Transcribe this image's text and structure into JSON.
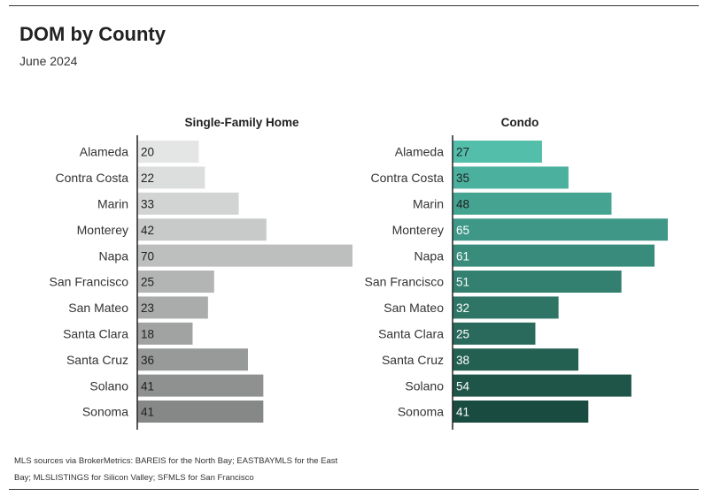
{
  "title": "DOM by County",
  "subtitle": "June 2024",
  "footer": {
    "line1": "MLS sources via BrokerMetrics: BAREIS for the North Bay; EASTBAYMLS for the East",
    "line2": "Bay; MLSLISTINGS for Silicon Valley; SFMLS for San Francisco"
  },
  "chart_data": [
    {
      "type": "bar",
      "orientation": "horizontal",
      "title": "Single-Family Home",
      "categories": [
        "Alameda",
        "Contra Costa",
        "Marin",
        "Monterey",
        "Napa",
        "San Francisco",
        "San Mateo",
        "Santa Clara",
        "Santa Cruz",
        "Solano",
        "Sonoma"
      ],
      "values": [
        20,
        22,
        33,
        42,
        70,
        25,
        23,
        18,
        36,
        41,
        41
      ],
      "colors": [
        "#e4e6e5",
        "#dcdedd",
        "#d2d4d3",
        "#c8cac9",
        "#bdbfbe",
        "#b3b5b4",
        "#aaacab",
        "#a1a3a2",
        "#989a99",
        "#8f9190",
        "#868887"
      ],
      "label_colors": [
        "#222222",
        "#222222",
        "#222222",
        "#222222",
        "#222222",
        "#222222",
        "#222222",
        "#222222",
        "#222222",
        "#222222",
        "#222222"
      ],
      "xlim": [
        0,
        70
      ]
    },
    {
      "type": "bar",
      "orientation": "horizontal",
      "title": "Condo",
      "categories": [
        "Alameda",
        "Contra Costa",
        "Marin",
        "Monterey",
        "Napa",
        "San Francisco",
        "San Mateo",
        "Santa Clara",
        "Santa Cruz",
        "Solano",
        "Sonoma"
      ],
      "values": [
        27,
        35,
        48,
        65,
        61,
        51,
        32,
        25,
        38,
        54,
        41
      ],
      "colors": [
        "#53bfab",
        "#4cb09e",
        "#45a491",
        "#3f9887",
        "#398c7c",
        "#338070",
        "#2e7566",
        "#296a5c",
        "#246052",
        "#1f5548",
        "#1a4b40"
      ],
      "label_colors": [
        "#222222",
        "#222222",
        "#222222",
        "#ffffff",
        "#ffffff",
        "#ffffff",
        "#ffffff",
        "#ffffff",
        "#ffffff",
        "#ffffff",
        "#ffffff"
      ],
      "xlim": [
        0,
        65
      ]
    }
  ]
}
